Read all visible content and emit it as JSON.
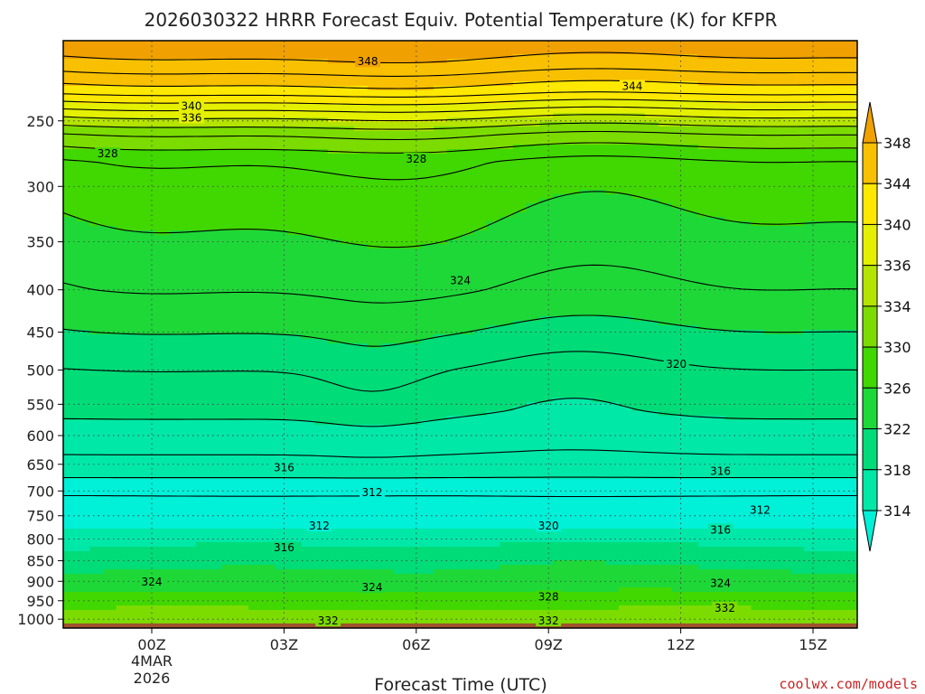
{
  "chart_data": {
    "type": "heatmap",
    "title": "2026030322 HRRR Forecast Equiv. Potential Temperature (K) for KFPR",
    "xlabel": "Forecast Time (UTC)",
    "ylabel": "",
    "x_ticks": [
      "00Z",
      "03Z",
      "06Z",
      "09Z",
      "12Z",
      "15Z"
    ],
    "x_tick_hours": [
      0,
      3,
      6,
      9,
      12,
      15
    ],
    "x_date_line1": "4MAR",
    "x_date_line2": "2026",
    "xlim_hours": [
      -2,
      16
    ],
    "y_ticks": [
      250,
      300,
      350,
      400,
      450,
      500,
      550,
      600,
      650,
      700,
      750,
      800,
      850,
      900,
      950,
      1000
    ],
    "ylim_hPa": [
      200,
      1025
    ],
    "y_log_scale": true,
    "grid": "dotted",
    "colorbar": {
      "levels": [
        314,
        318,
        322,
        326,
        330,
        334,
        336,
        340,
        344,
        348
      ],
      "labels": [
        "314",
        "318",
        "322",
        "326",
        "330",
        "334",
        "336",
        "340",
        "344",
        "348"
      ],
      "colors": [
        "#00f0d8",
        "#00e8a8",
        "#00dc78",
        "#1ed838",
        "#40d800",
        "#7cdc00",
        "#b4e400",
        "#e4f000",
        "#ffe800",
        "#f8c000",
        "#f0a000"
      ],
      "extend": "both"
    },
    "contour_levels": [
      308,
      310,
      312,
      314,
      316,
      318,
      320,
      322,
      324,
      326,
      328,
      330,
      332,
      334,
      336,
      338,
      340,
      342,
      344,
      346,
      348
    ],
    "contour_labels": [
      {
        "text": "348",
        "hour": 4.9,
        "p": 212
      },
      {
        "text": "344",
        "hour": 10.9,
        "p": 227
      },
      {
        "text": "340",
        "hour": 0.9,
        "p": 240
      },
      {
        "text": "336",
        "hour": 0.9,
        "p": 248
      },
      {
        "text": "328",
        "hour": -1.0,
        "p": 274
      },
      {
        "text": "328",
        "hour": 6.0,
        "p": 278
      },
      {
        "text": "324",
        "hour": 7.0,
        "p": 390
      },
      {
        "text": "320",
        "hour": 11.9,
        "p": 492
      },
      {
        "text": "316",
        "hour": 3.0,
        "p": 656
      },
      {
        "text": "316",
        "hour": 12.9,
        "p": 663
      },
      {
        "text": "312",
        "hour": 5.0,
        "p": 703
      },
      {
        "text": "312",
        "hour": 13.8,
        "p": 738
      },
      {
        "text": "312",
        "hour": 3.8,
        "p": 772
      },
      {
        "text": "320",
        "hour": 9.0,
        "p": 772
      },
      {
        "text": "316",
        "hour": 12.9,
        "p": 780
      },
      {
        "text": "316",
        "hour": 3.0,
        "p": 820
      },
      {
        "text": "324",
        "hour": 0.0,
        "p": 902
      },
      {
        "text": "324",
        "hour": 5.0,
        "p": 915
      },
      {
        "text": "324",
        "hour": 12.9,
        "p": 905
      },
      {
        "text": "328",
        "hour": 9.0,
        "p": 940
      },
      {
        "text": "332",
        "hour": 13.0,
        "p": 970
      },
      {
        "text": "332",
        "hour": 4.0,
        "p": 1005
      },
      {
        "text": "332",
        "hour": 9.0,
        "p": 1005
      }
    ],
    "ground": {
      "color": "#a0522d",
      "p_top": 1012
    }
  },
  "credit": "coolwx.com/models"
}
